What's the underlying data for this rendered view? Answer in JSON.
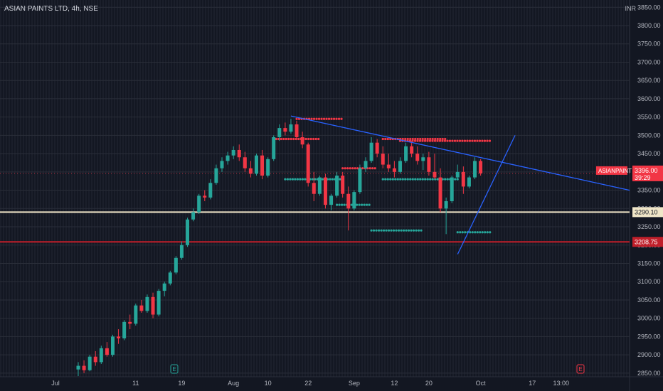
{
  "header": {
    "title": "ASIAN PAINTS LTD, 4h, NSE",
    "currency": "INR"
  },
  "chart_data": {
    "type": "candlestick",
    "ylim": [
      2840,
      3870
    ],
    "y_ticks": [
      2850,
      2900,
      2950,
      3000,
      3050,
      3100,
      3150,
      3200,
      3250,
      3300,
      3350,
      3400,
      3450,
      3500,
      3550,
      3600,
      3650,
      3700,
      3750,
      3800,
      3850
    ],
    "y_tick_labels": [
      "2850.00",
      "2900.00",
      "2950.00",
      "3000.00",
      "3050.00",
      "3100.00",
      "3150.00",
      "3200.00",
      "3250.00",
      "3300.00",
      "3350.00",
      "3400.00",
      "3450.00",
      "3500.00",
      "3550.00",
      "3600.00",
      "3650.00",
      "3700.00",
      "3750.00",
      "3800.00",
      "3850.00"
    ],
    "x_ticks": [
      {
        "bar": -20,
        "label": "Jul"
      },
      {
        "bar": 10,
        "label": "11"
      },
      {
        "bar": 18,
        "label": "19"
      },
      {
        "bar": 27,
        "label": "Aug"
      },
      {
        "bar": 33,
        "label": "10"
      },
      {
        "bar": 40,
        "label": "22"
      },
      {
        "bar": 48,
        "label": "Sep"
      },
      {
        "bar": 55,
        "label": "12"
      },
      {
        "bar": 61,
        "label": "20"
      },
      {
        "bar": 70,
        "label": "Oct"
      },
      {
        "bar": 79,
        "label": "17"
      },
      {
        "bar": 84,
        "label": "13:00"
      }
    ],
    "candles": [
      {
        "o": 2860,
        "h": 2880,
        "l": 2842,
        "c": 2870
      },
      {
        "o": 2870,
        "h": 2885,
        "l": 2850,
        "c": 2858
      },
      {
        "o": 2858,
        "h": 2900,
        "l": 2855,
        "c": 2895
      },
      {
        "o": 2895,
        "h": 2910,
        "l": 2870,
        "c": 2880
      },
      {
        "o": 2880,
        "h": 2925,
        "l": 2875,
        "c": 2918
      },
      {
        "o": 2918,
        "h": 2935,
        "l": 2895,
        "c": 2900
      },
      {
        "o": 2900,
        "h": 2955,
        "l": 2895,
        "c": 2950
      },
      {
        "o": 2950,
        "h": 2970,
        "l": 2930,
        "c": 2945
      },
      {
        "o": 2945,
        "h": 2995,
        "l": 2940,
        "c": 2990
      },
      {
        "o": 2990,
        "h": 3010,
        "l": 2970,
        "c": 2985
      },
      {
        "o": 2985,
        "h": 3040,
        "l": 2980,
        "c": 3035
      },
      {
        "o": 3035,
        "h": 3050,
        "l": 3015,
        "c": 3020
      },
      {
        "o": 3020,
        "h": 3065,
        "l": 3015,
        "c": 3058
      },
      {
        "o": 3058,
        "h": 3070,
        "l": 3000,
        "c": 3010
      },
      {
        "o": 3010,
        "h": 3080,
        "l": 3005,
        "c": 3075
      },
      {
        "o": 3075,
        "h": 3100,
        "l": 3060,
        "c": 3095
      },
      {
        "o": 3095,
        "h": 3130,
        "l": 3090,
        "c": 3125
      },
      {
        "o": 3125,
        "h": 3170,
        "l": 3120,
        "c": 3165
      },
      {
        "o": 3165,
        "h": 3210,
        "l": 3160,
        "c": 3200
      },
      {
        "o": 3200,
        "h": 3275,
        "l": 3195,
        "c": 3270
      },
      {
        "o": 3270,
        "h": 3300,
        "l": 3265,
        "c": 3290
      },
      {
        "o": 3290,
        "h": 3340,
        "l": 3285,
        "c": 3335
      },
      {
        "o": 3335,
        "h": 3350,
        "l": 3320,
        "c": 3330
      },
      {
        "o": 3330,
        "h": 3380,
        "l": 3325,
        "c": 3370
      },
      {
        "o": 3370,
        "h": 3420,
        "l": 3365,
        "c": 3410
      },
      {
        "o": 3410,
        "h": 3440,
        "l": 3400,
        "c": 3430
      },
      {
        "o": 3430,
        "h": 3455,
        "l": 3420,
        "c": 3445
      },
      {
        "o": 3445,
        "h": 3470,
        "l": 3435,
        "c": 3460
      },
      {
        "o": 3460,
        "h": 3475,
        "l": 3430,
        "c": 3440
      },
      {
        "o": 3440,
        "h": 3455,
        "l": 3400,
        "c": 3410
      },
      {
        "o": 3410,
        "h": 3430,
        "l": 3385,
        "c": 3395
      },
      {
        "o": 3395,
        "h": 3450,
        "l": 3390,
        "c": 3445
      },
      {
        "o": 3445,
        "h": 3460,
        "l": 3380,
        "c": 3390
      },
      {
        "o": 3390,
        "h": 3440,
        "l": 3385,
        "c": 3435
      },
      {
        "o": 3435,
        "h": 3500,
        "l": 3430,
        "c": 3495
      },
      {
        "o": 3495,
        "h": 3530,
        "l": 3485,
        "c": 3520
      },
      {
        "o": 3520,
        "h": 3535,
        "l": 3500,
        "c": 3510
      },
      {
        "o": 3510,
        "h": 3545,
        "l": 3505,
        "c": 3530
      },
      {
        "o": 3530,
        "h": 3540,
        "l": 3490,
        "c": 3495
      },
      {
        "o": 3495,
        "h": 3510,
        "l": 3465,
        "c": 3475
      },
      {
        "o": 3475,
        "h": 3480,
        "l": 3360,
        "c": 3370
      },
      {
        "o": 3370,
        "h": 3400,
        "l": 3320,
        "c": 3340
      },
      {
        "o": 3340,
        "h": 3390,
        "l": 3335,
        "c": 3385
      },
      {
        "o": 3385,
        "h": 3395,
        "l": 3300,
        "c": 3310
      },
      {
        "o": 3310,
        "h": 3340,
        "l": 3295,
        "c": 3335
      },
      {
        "o": 3335,
        "h": 3400,
        "l": 3330,
        "c": 3390
      },
      {
        "o": 3390,
        "h": 3400,
        "l": 3330,
        "c": 3340
      },
      {
        "o": 3340,
        "h": 3360,
        "l": 3240,
        "c": 3300
      },
      {
        "o": 3300,
        "h": 3350,
        "l": 3295,
        "c": 3345
      },
      {
        "o": 3345,
        "h": 3420,
        "l": 3340,
        "c": 3410
      },
      {
        "o": 3410,
        "h": 3440,
        "l": 3400,
        "c": 3430
      },
      {
        "o": 3430,
        "h": 3495,
        "l": 3425,
        "c": 3480
      },
      {
        "o": 3480,
        "h": 3490,
        "l": 3440,
        "c": 3450
      },
      {
        "o": 3450,
        "h": 3470,
        "l": 3410,
        "c": 3420
      },
      {
        "o": 3420,
        "h": 3450,
        "l": 3400,
        "c": 3410
      },
      {
        "o": 3410,
        "h": 3430,
        "l": 3385,
        "c": 3400
      },
      {
        "o": 3400,
        "h": 3440,
        "l": 3395,
        "c": 3430
      },
      {
        "o": 3430,
        "h": 3480,
        "l": 3425,
        "c": 3470
      },
      {
        "o": 3470,
        "h": 3485,
        "l": 3440,
        "c": 3450
      },
      {
        "o": 3450,
        "h": 3470,
        "l": 3420,
        "c": 3430
      },
      {
        "o": 3430,
        "h": 3450,
        "l": 3405,
        "c": 3440
      },
      {
        "o": 3440,
        "h": 3455,
        "l": 3390,
        "c": 3400
      },
      {
        "o": 3400,
        "h": 3450,
        "l": 3380,
        "c": 3385
      },
      {
        "o": 3385,
        "h": 3410,
        "l": 3290,
        "c": 3300
      },
      {
        "o": 3300,
        "h": 3330,
        "l": 3230,
        "c": 3320
      },
      {
        "o": 3320,
        "h": 3390,
        "l": 3315,
        "c": 3385
      },
      {
        "o": 3385,
        "h": 3420,
        "l": 3380,
        "c": 3400
      },
      {
        "o": 3400,
        "h": 3415,
        "l": 3340,
        "c": 3360
      },
      {
        "o": 3360,
        "h": 3390,
        "l": 3355,
        "c": 3385
      },
      {
        "o": 3385,
        "h": 3440,
        "l": 3380,
        "c": 3430
      },
      {
        "o": 3430,
        "h": 3435,
        "l": 3390,
        "c": 3396
      }
    ],
    "annotations": {
      "resistance_dots": [
        {
          "x1": 38,
          "x2": 46,
          "y": 3545,
          "color": "#f23645"
        },
        {
          "x1": 34,
          "x2": 42,
          "y": 3490,
          "color": "#f23645"
        },
        {
          "x1": 53,
          "x2": 64,
          "y": 3490,
          "color": "#f23645"
        },
        {
          "x1": 46,
          "x2": 52,
          "y": 3410,
          "color": "#f23645"
        },
        {
          "x1": 56,
          "x2": 72,
          "y": 3485,
          "color": "#f23645"
        }
      ],
      "support_dots": [
        {
          "x1": 36,
          "x2": 46,
          "y": 3380,
          "color": "#26a69a"
        },
        {
          "x1": 45,
          "x2": 51,
          "y": 3310,
          "color": "#26a69a"
        },
        {
          "x1": 51,
          "x2": 60,
          "y": 3240,
          "color": "#26a69a"
        },
        {
          "x1": 53,
          "x2": 66,
          "y": 3380,
          "color": "#26a69a"
        },
        {
          "x1": 66,
          "x2": 72,
          "y": 3235,
          "color": "#26a69a"
        }
      ],
      "trendlines": [
        {
          "x1": 37,
          "y1": 3553,
          "x2": 99,
          "y2": 3350,
          "color": "#2962ff"
        },
        {
          "x1": 66,
          "y1": 3175,
          "x2": 76,
          "y2": 3500,
          "color": "#2962ff"
        }
      ],
      "horizontal_lines": [
        {
          "y": 3290.1,
          "color": "#f0e6c8",
          "label": "3290.10"
        },
        {
          "y": 3208.75,
          "color": "#c01f2a",
          "label": "3208.75"
        }
      ],
      "last_price": {
        "y": 3396,
        "label": "3396.00",
        "countdown": "39:29",
        "symbol": "ASIANPAINT",
        "color": "#f23645"
      },
      "event_markers": [
        {
          "bar": 27,
          "label": "E"
        },
        {
          "bar": 90,
          "label": "E"
        }
      ]
    }
  }
}
